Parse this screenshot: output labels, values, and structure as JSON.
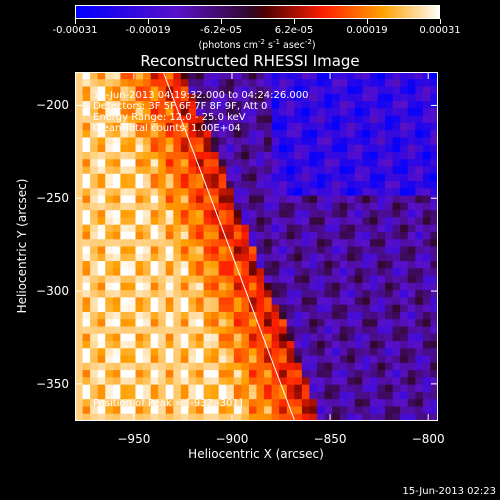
{
  "chart_data": {
    "type": "heatmap",
    "title": "Reconstructed RHESSI Image",
    "xlabel": "Heliocentric X (arcsec)",
    "ylabel": "Heliocentric Y (arcsec)",
    "xlim": [
      -980,
      -795
    ],
    "ylim": [
      -370,
      -182
    ],
    "xticks": [
      -950,
      -900,
      -850,
      -800
    ],
    "yticks": [
      -200,
      -250,
      -300,
      -350
    ],
    "colorscale": "red-temperature with negative blues",
    "colorbar": {
      "ticks": [
        "-0.00031",
        "-0.00019",
        "-6.2e-05",
        "6.2e-05",
        "0.00019",
        "0.00031"
      ],
      "units_html": "(photons cm<sup>-2</sup> s<sup>-1</sup> asec<sup>-2</sup>)"
    },
    "limb_line": {
      "x": [
        -935,
        -868
      ],
      "y": [
        -182,
        -370
      ]
    },
    "annotations": [
      "15-Jun-2013 04:19:32.000 to 04:24:26.000",
      "Detectors: 3F 5F 6F 7F 8F 9F, Att 0",
      "Energy Range: 12.0 - 25.0 keV",
      "Clean    Total counts: 1.00E+04"
    ],
    "peak_label": "Position of Peak = [-932,-301]"
  },
  "footer_timestamp": "15-Jun-2013 02:23"
}
